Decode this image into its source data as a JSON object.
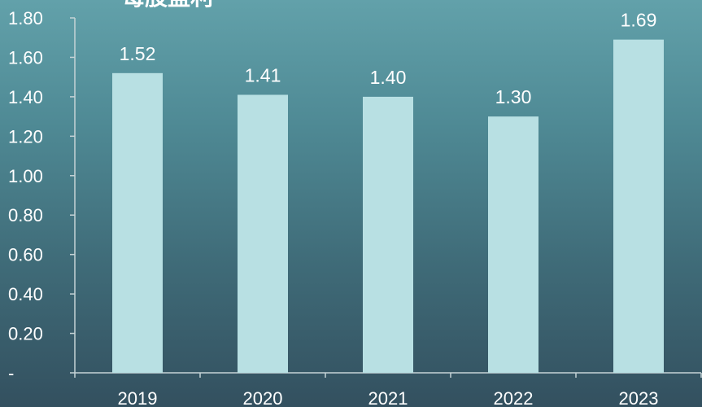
{
  "chart_data": {
    "type": "bar",
    "title": "每股盈利",
    "categories": [
      "2019",
      "2020",
      "2021",
      "2022",
      "2023"
    ],
    "values": [
      1.52,
      1.41,
      1.4,
      1.3,
      1.69
    ],
    "value_labels": [
      "1.52",
      "1.41",
      "1.40",
      "1.30",
      "1.69"
    ],
    "ylim": [
      0,
      1.8
    ],
    "yticks": [
      0,
      0.2,
      0.4,
      0.6,
      0.8,
      1.0,
      1.2,
      1.4,
      1.6,
      1.8
    ],
    "ytick_labels": [
      "-",
      "0.20",
      "0.40",
      "0.60",
      "0.80",
      "1.00",
      "1.20",
      "1.40",
      "1.60",
      "1.80"
    ],
    "grid": false,
    "legend": "none",
    "colors": {
      "bar": "#b8e0e3",
      "axis": "#c5d3d6",
      "text": "#ffffff"
    }
  }
}
